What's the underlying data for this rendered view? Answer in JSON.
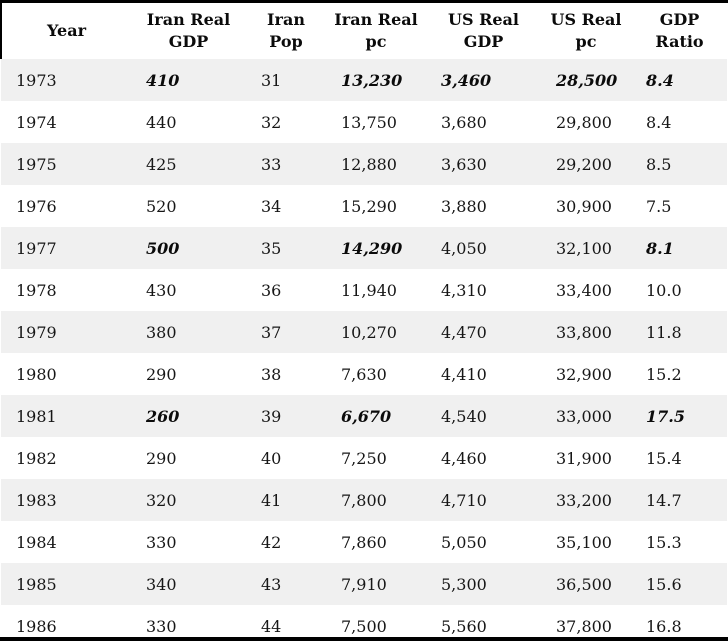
{
  "colors": {
    "stripe_row_bg": "#f0f0f0",
    "plain_row_bg": "#ffffff",
    "border_black": "#000000",
    "text": "#131313"
  },
  "table": {
    "columns": [
      {
        "id": "year",
        "label": "Year"
      },
      {
        "id": "iran_real_gdp",
        "label": "Iran Real\nGDP"
      },
      {
        "id": "iran_pop",
        "label": "Iran\nPop"
      },
      {
        "id": "iran_real_pc",
        "label": "Iran Real\npc"
      },
      {
        "id": "us_real_gdp",
        "label": "US Real\nGDP"
      },
      {
        "id": "us_real_pc",
        "label": "US Real\npc"
      },
      {
        "id": "gdp_ratio",
        "label": "GDP\nRatio"
      }
    ],
    "rows": [
      {
        "cells": [
          {
            "t": "1973"
          },
          {
            "t": "410",
            "em": true
          },
          {
            "t": "31"
          },
          {
            "t": "13,230",
            "em": true
          },
          {
            "t": "3,460",
            "em": true
          },
          {
            "t": "28,500",
            "em": true
          },
          {
            "t": "8.4",
            "em": true
          }
        ]
      },
      {
        "cells": [
          {
            "t": "1974"
          },
          {
            "t": "440"
          },
          {
            "t": "32"
          },
          {
            "t": "13,750"
          },
          {
            "t": "3,680"
          },
          {
            "t": "29,800"
          },
          {
            "t": "8.4"
          }
        ]
      },
      {
        "cells": [
          {
            "t": "1975"
          },
          {
            "t": "425"
          },
          {
            "t": "33"
          },
          {
            "t": "12,880"
          },
          {
            "t": "3,630"
          },
          {
            "t": "29,200"
          },
          {
            "t": "8.5"
          }
        ]
      },
      {
        "cells": [
          {
            "t": "1976"
          },
          {
            "t": "520"
          },
          {
            "t": "34"
          },
          {
            "t": "15,290"
          },
          {
            "t": "3,880"
          },
          {
            "t": "30,900"
          },
          {
            "t": "7.5"
          }
        ]
      },
      {
        "cells": [
          {
            "t": "1977"
          },
          {
            "t": "500",
            "em": true
          },
          {
            "t": "35"
          },
          {
            "t": "14,290",
            "em": true
          },
          {
            "t": "4,050"
          },
          {
            "t": "32,100"
          },
          {
            "t": "8.1",
            "em": true
          }
        ]
      },
      {
        "cells": [
          {
            "t": "1978"
          },
          {
            "t": "430"
          },
          {
            "t": "36"
          },
          {
            "t": "11,940"
          },
          {
            "t": "4,310"
          },
          {
            "t": "33,400"
          },
          {
            "t": "10.0"
          }
        ]
      },
      {
        "cells": [
          {
            "t": "1979"
          },
          {
            "t": "380"
          },
          {
            "t": "37"
          },
          {
            "t": "10,270"
          },
          {
            "t": "4,470"
          },
          {
            "t": "33,800"
          },
          {
            "t": "11.8"
          }
        ]
      },
      {
        "cells": [
          {
            "t": "1980"
          },
          {
            "t": "290"
          },
          {
            "t": "38"
          },
          {
            "t": "7,630"
          },
          {
            "t": "4,410"
          },
          {
            "t": "32,900"
          },
          {
            "t": "15.2"
          }
        ]
      },
      {
        "cells": [
          {
            "t": "1981"
          },
          {
            "t": "260",
            "em": true
          },
          {
            "t": "39"
          },
          {
            "t": "6,670",
            "em": true
          },
          {
            "t": "4,540"
          },
          {
            "t": "33,000"
          },
          {
            "t": "17.5",
            "em": true
          }
        ]
      },
      {
        "cells": [
          {
            "t": "1982"
          },
          {
            "t": "290"
          },
          {
            "t": "40"
          },
          {
            "t": "7,250"
          },
          {
            "t": "4,460"
          },
          {
            "t": "31,900"
          },
          {
            "t": "15.4"
          }
        ]
      },
      {
        "cells": [
          {
            "t": "1983"
          },
          {
            "t": "320"
          },
          {
            "t": "41"
          },
          {
            "t": "7,800"
          },
          {
            "t": "4,710"
          },
          {
            "t": "33,200"
          },
          {
            "t": "14.7"
          }
        ]
      },
      {
        "cells": [
          {
            "t": "1984"
          },
          {
            "t": "330"
          },
          {
            "t": "42"
          },
          {
            "t": "7,860"
          },
          {
            "t": "5,050"
          },
          {
            "t": "35,100"
          },
          {
            "t": "15.3"
          }
        ]
      },
      {
        "cells": [
          {
            "t": "1985"
          },
          {
            "t": "340"
          },
          {
            "t": "43"
          },
          {
            "t": "7,910"
          },
          {
            "t": "5,300"
          },
          {
            "t": "36,500"
          },
          {
            "t": "15.6"
          }
        ]
      },
      {
        "cells": [
          {
            "t": "1986"
          },
          {
            "t": "330"
          },
          {
            "t": "44"
          },
          {
            "t": "7,500"
          },
          {
            "t": "5,560"
          },
          {
            "t": "37,800"
          },
          {
            "t": "16.8"
          }
        ]
      }
    ]
  },
  "chart_data": {
    "type": "table",
    "title": "",
    "columns": [
      "Year",
      "Iran Real GDP",
      "Iran Pop",
      "Iran Real pc",
      "US Real GDP",
      "US Real pc",
      "GDP Ratio"
    ],
    "rows": [
      [
        1973,
        410,
        31,
        13230,
        3460,
        28500,
        8.4
      ],
      [
        1974,
        440,
        32,
        13750,
        3680,
        29800,
        8.4
      ],
      [
        1975,
        425,
        33,
        12880,
        3630,
        29200,
        8.5
      ],
      [
        1976,
        520,
        34,
        15290,
        3880,
        30900,
        7.5
      ],
      [
        1977,
        500,
        35,
        14290,
        4050,
        32100,
        8.1
      ],
      [
        1978,
        430,
        36,
        11940,
        4310,
        33400,
        10.0
      ],
      [
        1979,
        380,
        37,
        10270,
        4470,
        33800,
        11.8
      ],
      [
        1980,
        290,
        38,
        7630,
        4410,
        32900,
        15.2
      ],
      [
        1981,
        260,
        39,
        6670,
        4540,
        33000,
        17.5
      ],
      [
        1982,
        290,
        40,
        7250,
        4460,
        31900,
        15.4
      ],
      [
        1983,
        320,
        41,
        7800,
        4710,
        33200,
        14.7
      ],
      [
        1984,
        330,
        42,
        7860,
        5050,
        35100,
        15.3
      ],
      [
        1985,
        340,
        43,
        7910,
        5300,
        36500,
        15.6
      ],
      [
        1986,
        330,
        44,
        7500,
        5560,
        37800,
        16.8
      ]
    ],
    "emphasized_rows_bold_italic": {
      "1973": [
        "Iran Real GDP",
        "Iran Real pc",
        "US Real GDP",
        "US Real pc",
        "GDP Ratio"
      ],
      "1977": [
        "Iran Real GDP",
        "Iran Real pc",
        "GDP Ratio"
      ],
      "1981": [
        "Iran Real GDP",
        "Iran Real pc",
        "GDP Ratio"
      ]
    },
    "layout": {
      "zebra_striping": true,
      "stripe_color": "#f0f0f0",
      "header_border": "black top and side borders",
      "bottom_bar": "black"
    }
  }
}
